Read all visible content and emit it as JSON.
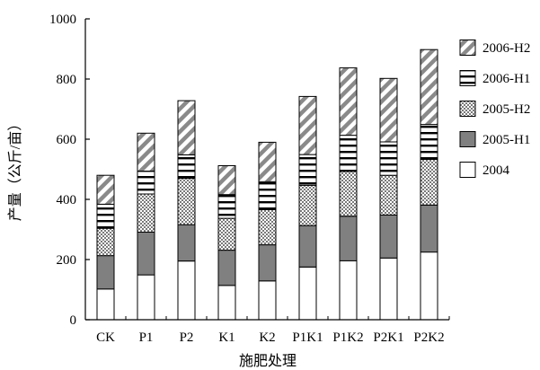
{
  "chart_data": {
    "type": "bar",
    "stacked": true,
    "categories": [
      "CK",
      "P1",
      "P2",
      "K1",
      "K2",
      "P1K1",
      "P1K2",
      "P2K1",
      "P2K2"
    ],
    "series": [
      {
        "name": "2004",
        "values": [
          102,
          149,
          195,
          114,
          129,
          175,
          196,
          205,
          225
        ],
        "pattern": "white"
      },
      {
        "name": "2005-H1",
        "values": [
          111,
          142,
          121,
          117,
          120,
          138,
          148,
          143,
          156
        ],
        "pattern": "solid-gray"
      },
      {
        "name": "2005-H2",
        "values": [
          91,
          127,
          154,
          106,
          117,
          134,
          149,
          132,
          152
        ],
        "pattern": "checker"
      },
      {
        "name": "2006-H1",
        "values": [
          80,
          76,
          78,
          79,
          93,
          102,
          120,
          111,
          116
        ],
        "pattern": "horizontal-lines"
      },
      {
        "name": "2006-H2",
        "values": [
          96,
          126,
          180,
          96,
          131,
          193,
          224,
          211,
          249
        ],
        "pattern": "diagonal"
      }
    ],
    "xlabel": "施肥处理",
    "ylabel": "产量（公斤/亩）",
    "ylim": [
      0,
      1000
    ],
    "yticks": [
      0,
      200,
      400,
      600,
      800,
      1000
    ],
    "legend_position": "right",
    "legend_order": [
      "2006-H2",
      "2006-H1",
      "2005-H2",
      "2005-H1",
      "2004"
    ],
    "colors": {
      "axis": "#000000",
      "gray_fill": "#808080",
      "white_fill": "#ffffff"
    }
  }
}
